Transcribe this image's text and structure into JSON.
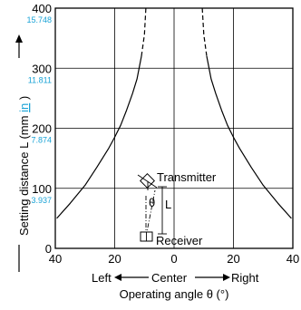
{
  "chart_data": {
    "type": "line",
    "xlabel": "Operating angle θ (°)",
    "ylabel_prefix": "Setting distance L (mm",
    "ylabel_unit_alt": "in",
    "ylabel_suffix": ")",
    "direction_left": "Left",
    "direction_center": "Center",
    "direction_right": "Right",
    "xlim": [
      -40,
      40
    ],
    "ylim": [
      0,
      400
    ],
    "x_tick_labels": [
      "40",
      "20",
      "0",
      "20",
      "40"
    ],
    "y_ticks_mm": [
      "0",
      "100",
      "200",
      "300",
      "400"
    ],
    "y_ticks_in": [
      "3.937",
      "7.874",
      "11.811",
      "15.748"
    ],
    "grid": true,
    "series": [
      {
        "segment": "left",
        "x": [
          -39.5,
          -35,
          -30,
          -26,
          -22,
          -20,
          -18,
          -16,
          -14,
          -12.5,
          -11,
          -10,
          -9.5
        ],
        "y": [
          50,
          75,
          105,
          135,
          167,
          185,
          205,
          230,
          258,
          282,
          320,
          356,
          400
        ]
      },
      {
        "segment": "right",
        "x": [
          9.5,
          10,
          11,
          12.5,
          14,
          16,
          18,
          20,
          22,
          26,
          30,
          35,
          39.5
        ],
        "y": [
          400,
          356,
          320,
          282,
          258,
          230,
          205,
          185,
          167,
          135,
          105,
          75,
          50
        ]
      }
    ],
    "dashed_above_y": 320,
    "annotations": {
      "transmitter": "Transmitter",
      "receiver": "Receiver",
      "theta": "θ",
      "distance": "L"
    },
    "colors": {
      "line": "#000000",
      "inch_label": "#1aa3d6",
      "grid": "#000000"
    }
  }
}
